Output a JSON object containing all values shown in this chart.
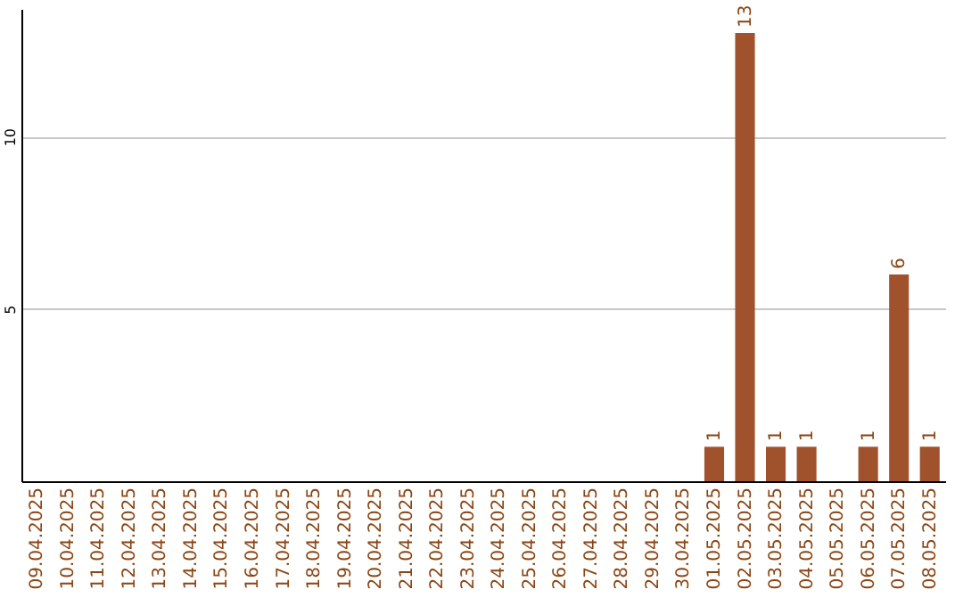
{
  "chart_data": {
    "type": "bar",
    "categories": [
      "09.04.2025",
      "10.04.2025",
      "11.04.2025",
      "12.04.2025",
      "13.04.2025",
      "14.04.2025",
      "15.04.2025",
      "16.04.2025",
      "17.04.2025",
      "18.04.2025",
      "19.04.2025",
      "20.04.2025",
      "21.04.2025",
      "22.04.2025",
      "23.04.2025",
      "24.04.2025",
      "25.04.2025",
      "26.04.2025",
      "27.04.2025",
      "28.04.2025",
      "29.04.2025",
      "30.04.2025",
      "01.05.2025",
      "02.05.2025",
      "03.05.2025",
      "04.05.2025",
      "05.05.2025",
      "06.05.2025",
      "07.05.2025",
      "08.05.2025"
    ],
    "values": [
      0,
      0,
      0,
      0,
      0,
      0,
      0,
      0,
      0,
      0,
      0,
      0,
      0,
      0,
      0,
      0,
      0,
      0,
      0,
      0,
      0,
      0,
      1,
      13,
      1,
      1,
      0,
      1,
      6,
      1
    ],
    "value_labels": [
      null,
      null,
      null,
      null,
      null,
      null,
      null,
      null,
      null,
      null,
      null,
      null,
      null,
      null,
      null,
      null,
      null,
      null,
      null,
      null,
      null,
      null,
      "1",
      "13",
      "1",
      "1",
      null,
      "1",
      "6",
      "1"
    ],
    "color": "#a0522d",
    "ylim": [
      0,
      13.7
    ],
    "yticks": [
      5,
      10
    ],
    "grid": "y"
  }
}
